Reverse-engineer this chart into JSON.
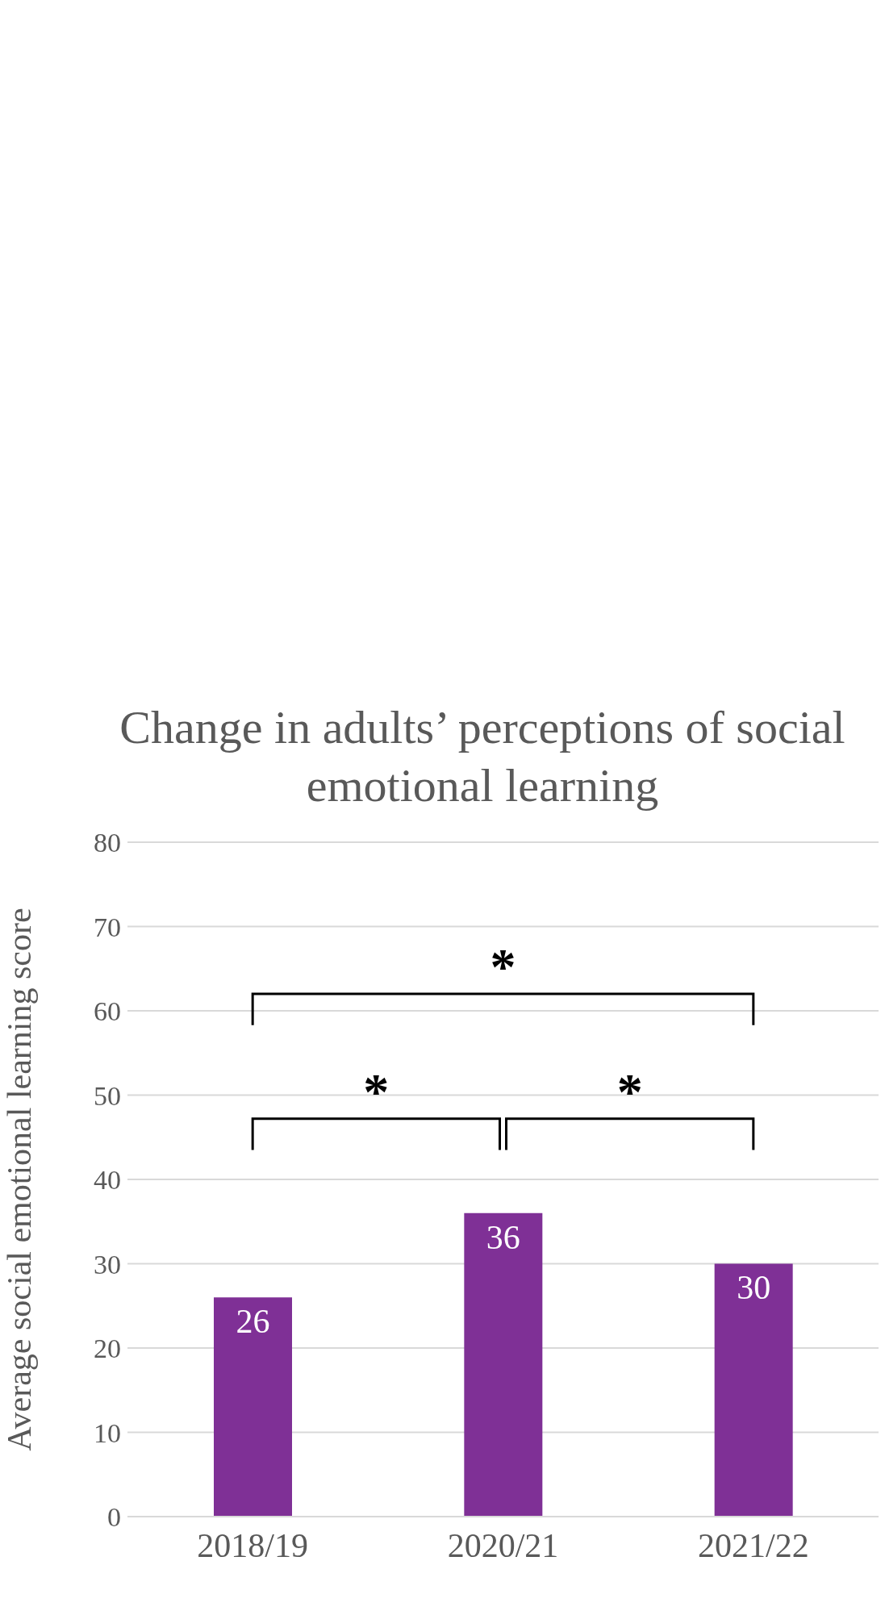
{
  "chart_data": {
    "type": "bar",
    "title": "Change in adults’ perceptions of social emotional learning",
    "ylabel": "Average social emotional learning score",
    "categories": [
      "2018/19",
      "2020/21",
      "2021/22"
    ],
    "values": [
      26,
      36,
      30
    ],
    "color": "#7f3096",
    "data_labels": true,
    "ylim": [
      0,
      80
    ],
    "yticks": [
      0,
      10,
      20,
      30,
      40,
      50,
      60,
      70,
      80
    ],
    "grid": "y",
    "annotations": [
      "*",
      "*",
      "*"
    ]
  }
}
